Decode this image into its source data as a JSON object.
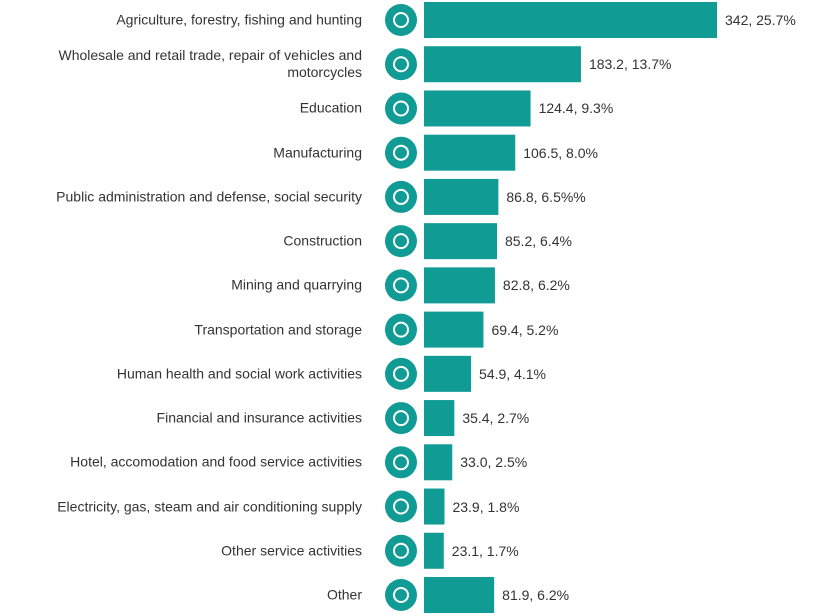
{
  "chart_data": {
    "type": "bar",
    "orientation": "horizontal",
    "color": "#109b95",
    "categories": [
      "Agriculture, forestry, fishing and hunting",
      "Wholesale and retail trade, repair of vehicles and motorcycles",
      "Education",
      "Manufacturing",
      "Public administration and defense, social security",
      "Construction",
      "Mining and quarrying",
      "Transportation and storage",
      "Human health and social work activities",
      "Financial and insurance activities",
      "Hotel, accomodation and food service activities",
      "Electricity, gas, steam and air conditioning supply",
      "Other service activities",
      "Other"
    ],
    "values": [
      342,
      183.2,
      124.4,
      106.5,
      86.8,
      85.2,
      82.8,
      69.4,
      54.9,
      35.4,
      33.0,
      23.9,
      23.1,
      81.9
    ],
    "value_labels": [
      "342, 25.7%",
      "183.2, 13.7%",
      "124.4, 9.3%",
      "106.5, 8.0%",
      "86.8, 6.5%%",
      "85.2, 6.4%",
      "82.8, 6.2%",
      "69.4, 5.2%",
      "54.9, 4.1%",
      "35.4, 2.7%",
      "33.0, 2.5%",
      "23.9, 1.8%",
      "23.1, 1.7%",
      "81.9, 6.2%"
    ]
  }
}
